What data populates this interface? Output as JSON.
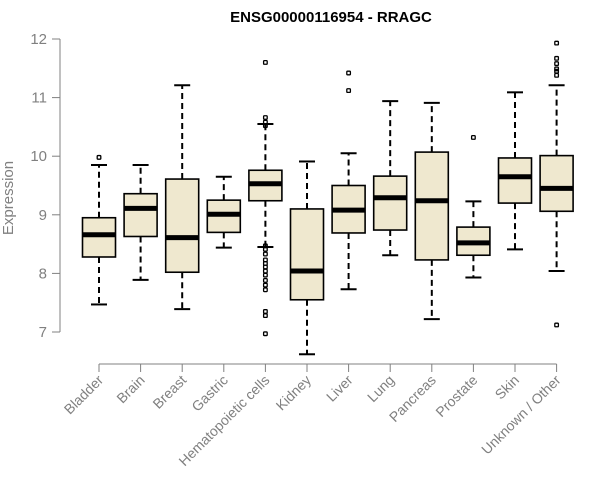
{
  "chart_data": {
    "type": "boxplot",
    "title": "ENSG00000116954 - RRAGC",
    "xlabel": "",
    "ylabel": "Expression",
    "ylim": [
      6.6,
      12.0
    ],
    "yticks": [
      7,
      8,
      9,
      10,
      11,
      12
    ],
    "categories": [
      "Bladder",
      "Brain",
      "Breast",
      "Gastric",
      "Hematopoietic cells",
      "Kidney",
      "Liver",
      "Lung",
      "Pancreas",
      "Prostate",
      "Skin",
      "Unknown / Other"
    ],
    "boxes": [
      {
        "name": "Bladder",
        "low": 7.47,
        "q1": 8.28,
        "median": 8.66,
        "q3": 8.95,
        "high": 9.85,
        "outliers": [
          9.98
        ]
      },
      {
        "name": "Brain",
        "low": 7.89,
        "q1": 8.63,
        "median": 9.11,
        "q3": 9.36,
        "high": 9.85,
        "outliers": []
      },
      {
        "name": "Breast",
        "low": 7.39,
        "q1": 8.02,
        "median": 8.61,
        "q3": 9.61,
        "high": 11.21,
        "outliers": []
      },
      {
        "name": "Gastric",
        "low": 8.44,
        "q1": 8.7,
        "median": 9.01,
        "q3": 9.25,
        "high": 9.65,
        "outliers": []
      },
      {
        "name": "Hematopoietic cells",
        "low": 8.45,
        "q1": 9.24,
        "median": 9.53,
        "q3": 9.76,
        "high": 10.55,
        "outliers": [
          11.6,
          10.66,
          10.58,
          10.52,
          8.47,
          8.41,
          8.33,
          8.23,
          8.17,
          8.11,
          8.04,
          7.97,
          7.88,
          7.8,
          7.72,
          7.35,
          7.28,
          6.97
        ]
      },
      {
        "name": "Kidney",
        "low": 6.62,
        "q1": 7.55,
        "median": 8.04,
        "q3": 9.1,
        "high": 9.91,
        "outliers": []
      },
      {
        "name": "Liver",
        "low": 7.73,
        "q1": 8.69,
        "median": 9.08,
        "q3": 9.5,
        "high": 10.05,
        "outliers": [
          11.42,
          11.12
        ]
      },
      {
        "name": "Lung",
        "low": 8.31,
        "q1": 8.74,
        "median": 9.29,
        "q3": 9.66,
        "high": 10.94,
        "outliers": []
      },
      {
        "name": "Pancreas",
        "low": 7.22,
        "q1": 8.23,
        "median": 9.24,
        "q3": 10.07,
        "high": 10.91,
        "outliers": []
      },
      {
        "name": "Prostate",
        "low": 7.93,
        "q1": 8.31,
        "median": 8.52,
        "q3": 8.79,
        "high": 9.23,
        "outliers": [
          10.32
        ]
      },
      {
        "name": "Skin",
        "low": 8.41,
        "q1": 9.2,
        "median": 9.65,
        "q3": 9.97,
        "high": 11.09,
        "outliers": []
      },
      {
        "name": "Unknown / Other",
        "low": 8.04,
        "q1": 9.06,
        "median": 9.45,
        "q3": 10.01,
        "high": 11.21,
        "outliers": [
          11.93,
          11.67,
          11.58,
          11.49,
          11.45,
          11.38,
          7.12
        ]
      }
    ]
  }
}
